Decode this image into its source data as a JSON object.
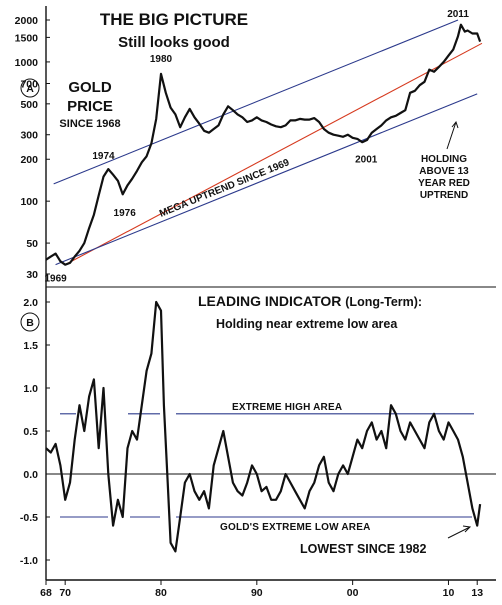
{
  "chart_data": [
    {
      "type": "line",
      "panel_marker": "A",
      "title": "THE BIG PICTURE",
      "subtitle": "Still looks good",
      "label_lines": [
        "GOLD",
        "PRICE",
        "SINCE 1968"
      ],
      "y_scale": "log",
      "ylim": [
        25,
        2000
      ],
      "xlim": [
        1968,
        2013.5
      ],
      "y_ticks": [
        "2000",
        "1500",
        "1000",
        "700",
        "500",
        "300",
        "200",
        "100",
        "50",
        "30"
      ],
      "y_tick_values": [
        2000,
        1500,
        1000,
        700,
        500,
        300,
        200,
        100,
        50,
        30
      ],
      "series": [
        {
          "x": [
            1968,
            1968.5,
            1969,
            1969.5,
            1970,
            1970.5,
            1971,
            1971.5,
            1972,
            1972.5,
            1973,
            1973.5,
            1974,
            1974.5,
            1975,
            1975.5,
            1976,
            1976.5,
            1977,
            1977.5,
            1978,
            1978.5,
            1979,
            1979.5,
            1980,
            1980.5,
            1981,
            1981.5,
            1982,
            1982.5,
            1983,
            1983.5,
            1984,
            1984.5,
            1985,
            1985.5,
            1986,
            1986.5,
            1987,
            1987.5,
            1988,
            1988.5,
            1989,
            1989.5,
            1990,
            1990.5,
            1991,
            1991.5,
            1992,
            1992.5,
            1993,
            1993.5,
            1994,
            1994.5,
            1995,
            1995.5,
            1996,
            1996.5,
            1997,
            1997.5,
            1998,
            1998.5,
            1999,
            1999.5,
            2000,
            2000.5,
            2001,
            2001.5,
            2002,
            2002.5,
            2003,
            2003.5,
            2004,
            2004.5,
            2005,
            2005.5,
            2006,
            2006.5,
            2007,
            2007.5,
            2008,
            2008.5,
            2009,
            2009.5,
            2010,
            2010.5,
            2011,
            2011.3,
            2011.7,
            2012,
            2012.5,
            2013,
            2013.3
          ],
          "y": [
            38,
            40,
            42,
            37,
            35,
            36,
            40,
            44,
            50,
            64,
            80,
            110,
            150,
            170,
            155,
            140,
            112,
            130,
            145,
            165,
            190,
            210,
            260,
            390,
            820,
            600,
            470,
            420,
            340,
            400,
            460,
            400,
            360,
            320,
            310,
            330,
            350,
            420,
            480,
            450,
            420,
            400,
            370,
            380,
            400,
            380,
            370,
            355,
            345,
            340,
            350,
            380,
            380,
            390,
            385,
            385,
            395,
            370,
            330,
            310,
            300,
            295,
            290,
            300,
            285,
            280,
            265,
            275,
            310,
            330,
            350,
            380,
            400,
            410,
            430,
            450,
            600,
            620,
            680,
            720,
            880,
            850,
            920,
            1000,
            1110,
            1230,
            1530,
            1850,
            1650,
            1680,
            1600,
            1600,
            1400
          ]
        }
      ],
      "trendlines": [
        {
          "name": "upper channel",
          "color": "#2c3a8c",
          "x": [
            1968.8,
            2011
          ],
          "y": [
            133,
            2000
          ]
        },
        {
          "name": "red uptrend",
          "color": "#d63a1f",
          "x": [
            1970,
            2013.5
          ],
          "y": [
            35,
            1360
          ]
        },
        {
          "name": "mega uptrend",
          "color": "#2c3a8c",
          "x": [
            1969,
            2013
          ],
          "y": [
            35,
            590
          ]
        }
      ],
      "annotations": [
        {
          "text": "1974",
          "x": 1974,
          "y": 170
        },
        {
          "text": "1976",
          "x": 1976,
          "y": 105
        },
        {
          "text": "1980",
          "x": 1980,
          "y": 820
        },
        {
          "text": "1969",
          "x": 1969,
          "y": 35
        },
        {
          "text": "2001",
          "x": 2001,
          "y": 255
        },
        {
          "text": "2011",
          "x": 2011,
          "y": 1900
        }
      ],
      "mega_label": "MEGA UPTREND SINCE 1969",
      "holding_label": [
        "HOLDING",
        "ABOVE 13",
        "YEAR RED",
        "UPTREND"
      ]
    },
    {
      "type": "line",
      "panel_marker": "B",
      "title": "LEADING INDICATOR",
      "title_suffix": "(Long-Term):",
      "subtitle": "Holding near extreme low area",
      "xlim": [
        1968,
        2013.5
      ],
      "ylim": [
        -1.0,
        2.0
      ],
      "y_ticks": [
        "2.0",
        "1.5",
        "1.0",
        "0.5",
        "0.0",
        "-0.5",
        "-1.0"
      ],
      "y_tick_values": [
        2.0,
        1.5,
        1.0,
        0.5,
        0.0,
        -0.5,
        -1.0
      ],
      "x_ticks": [
        "68",
        "70",
        "80",
        "90",
        "00",
        "10",
        "13"
      ],
      "x_tick_values": [
        1968,
        1970,
        1980,
        1990,
        2000,
        2010,
        2013
      ],
      "series": [
        {
          "x": [
            1968,
            1968.5,
            1969,
            1969.5,
            1970,
            1970.5,
            1971,
            1971.5,
            1972,
            1972.5,
            1973,
            1973.5,
            1974,
            1974.5,
            1975,
            1975.5,
            1976,
            1976.5,
            1977,
            1977.5,
            1978,
            1978.5,
            1979,
            1979.5,
            1980,
            1980.3,
            1980.7,
            1981,
            1981.5,
            1982,
            1982.5,
            1983,
            1983.5,
            1984,
            1984.5,
            1985,
            1985.5,
            1986,
            1986.5,
            1987,
            1987.5,
            1988,
            1988.5,
            1989,
            1989.5,
            1990,
            1990.5,
            1991,
            1991.5,
            1992,
            1992.5,
            1993,
            1993.5,
            1994,
            1994.5,
            1995,
            1995.5,
            1996,
            1996.5,
            1997,
            1997.5,
            1998,
            1998.5,
            1999,
            1999.5,
            2000,
            2000.5,
            2001,
            2001.5,
            2002,
            2002.5,
            2003,
            2003.5,
            2004,
            2004.5,
            2005,
            2005.5,
            2006,
            2006.5,
            2007,
            2007.5,
            2008,
            2008.5,
            2009,
            2009.5,
            2010,
            2010.5,
            2011,
            2011.5,
            2012,
            2012.5,
            2013,
            2013.3
          ],
          "y": [
            0.3,
            0.25,
            0.35,
            0.1,
            -0.3,
            -0.1,
            0.4,
            0.8,
            0.5,
            0.9,
            1.1,
            0.3,
            1.0,
            0.0,
            -0.6,
            -0.3,
            -0.5,
            0.3,
            0.5,
            0.4,
            0.8,
            1.2,
            1.4,
            2.0,
            1.9,
            0.8,
            -0.1,
            -0.8,
            -0.9,
            -0.5,
            -0.1,
            0.0,
            -0.2,
            -0.3,
            -0.2,
            -0.4,
            0.1,
            0.3,
            0.5,
            0.2,
            -0.1,
            -0.2,
            -0.25,
            -0.1,
            0.1,
            0.0,
            -0.2,
            -0.15,
            -0.3,
            -0.3,
            -0.2,
            0.0,
            -0.1,
            -0.2,
            -0.3,
            -0.4,
            -0.2,
            -0.1,
            0.1,
            0.2,
            -0.1,
            -0.2,
            0.0,
            0.1,
            0.0,
            0.2,
            0.4,
            0.3,
            0.5,
            0.6,
            0.4,
            0.5,
            0.3,
            0.8,
            0.7,
            0.5,
            0.4,
            0.6,
            0.5,
            0.4,
            0.3,
            0.6,
            0.7,
            0.5,
            0.4,
            0.6,
            0.5,
            0.4,
            0.2,
            -0.1,
            -0.4,
            -0.6,
            -0.35
          ]
        }
      ],
      "zones": [
        {
          "label": "EXTREME HIGH AREA",
          "y": 0.7
        },
        {
          "label": "GOLD'S EXTREME  LOW  AREA",
          "y": -0.5
        }
      ],
      "lowest_label": "LOWEST SINCE 1982"
    }
  ]
}
